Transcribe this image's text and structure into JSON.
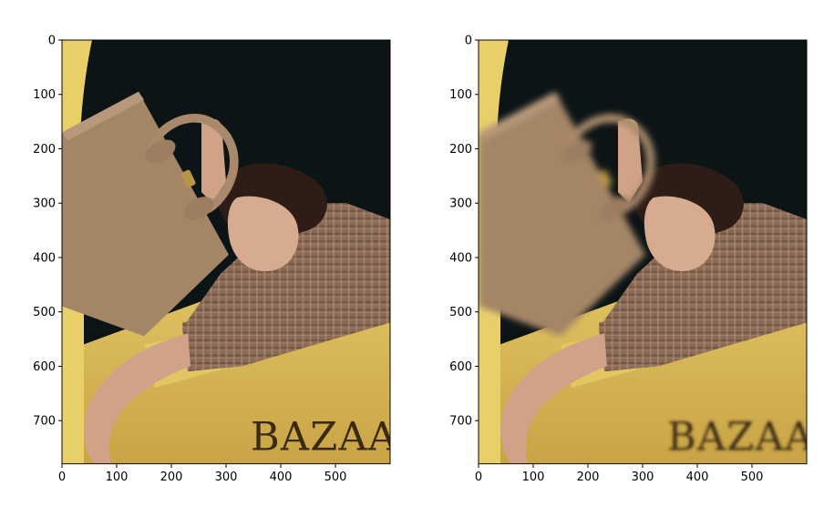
{
  "chart_data": [
    {
      "type": "image",
      "panel": "original",
      "xlabel": "",
      "ylabel": "",
      "xlim": [
        0,
        600
      ],
      "ylim": [
        780,
        0
      ],
      "x_ticks": [
        0,
        100,
        200,
        300,
        400,
        500
      ],
      "y_ticks": [
        0,
        100,
        200,
        300,
        400,
        500,
        600,
        700
      ],
      "logo_text": "BAZAAR",
      "blurred": false
    },
    {
      "type": "image",
      "panel": "bag-blurred",
      "xlabel": "",
      "ylabel": "",
      "xlim": [
        0,
        600
      ],
      "ylim": [
        780,
        0
      ],
      "x_ticks": [
        0,
        100,
        200,
        300,
        400,
        500
      ],
      "y_ticks": [
        0,
        100,
        200,
        300,
        400,
        500,
        600,
        700
      ],
      "logo_text": "BAZAAR",
      "blurred": true
    }
  ],
  "colors": {
    "background_dark": "#0d1416",
    "yellow": "#dcbc58",
    "bag": "#a48566",
    "skin": "#d0a388",
    "hair": "#2e1d16",
    "plaid": "#8a6a56"
  }
}
